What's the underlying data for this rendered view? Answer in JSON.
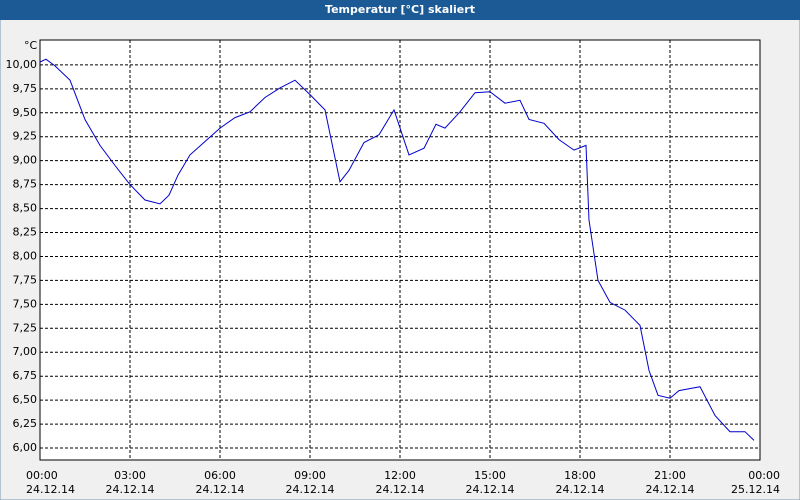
{
  "chart_data": {
    "type": "line",
    "title": "Temperatur [°C] skaliert",
    "y_label": "°C",
    "x": [
      0,
      0.2,
      0.5,
      1,
      1.5,
      2,
      2.5,
      3,
      3.5,
      4,
      4.3,
      4.6,
      5,
      5.5,
      6,
      6.5,
      7,
      7.5,
      8,
      8.5,
      9,
      9.5,
      10,
      10.3,
      10.8,
      11.3,
      11.8,
      12.3,
      12.8,
      13.2,
      13.5,
      14,
      14.5,
      15,
      15.5,
      16,
      16.3,
      16.8,
      17.3,
      17.8,
      18.2,
      18.3,
      18.6,
      19,
      19.5,
      20,
      20.3,
      20.6,
      21,
      21.3,
      22,
      22.5,
      23,
      23.5,
      23.8
    ],
    "series": [
      {
        "color": "#0000cc",
        "values": [
          10.03,
          10.06,
          9.99,
          9.84,
          9.43,
          9.16,
          8.95,
          8.75,
          8.59,
          8.55,
          8.64,
          8.85,
          9.06,
          9.2,
          9.34,
          9.45,
          9.51,
          9.66,
          9.76,
          9.84,
          9.69,
          9.53,
          8.78,
          8.9,
          9.19,
          9.27,
          9.53,
          9.06,
          9.13,
          9.38,
          9.34,
          9.51,
          9.71,
          9.72,
          9.6,
          9.63,
          9.43,
          9.39,
          9.22,
          9.11,
          9.16,
          8.38,
          7.75,
          7.52,
          7.44,
          7.28,
          6.81,
          6.55,
          6.52,
          6.6,
          6.64,
          6.34,
          6.17,
          6.17,
          6.08
        ]
      }
    ],
    "xlim": [
      0,
      24
    ],
    "xticks": [
      {
        "value": 0,
        "label": "00:00"
      },
      {
        "value": 3,
        "label": "03:00"
      },
      {
        "value": 6,
        "label": "06:00"
      },
      {
        "value": 9,
        "label": "09:00"
      },
      {
        "value": 12,
        "label": "12:00"
      },
      {
        "value": 15,
        "label": "15:00"
      },
      {
        "value": 18,
        "label": "18:00"
      },
      {
        "value": 21,
        "label": "21:00"
      },
      {
        "value": 24,
        "label": "00:00"
      }
    ],
    "xtick_dates": [
      "24.12.14",
      "24.12.14",
      "24.12.14",
      "24.12.14",
      "24.12.14",
      "24.12.14",
      "24.12.14",
      "24.12.14",
      "25.12.14"
    ],
    "ylim": [
      5.875,
      10.26
    ],
    "yticks": [
      {
        "value": 6,
        "label": "6,00"
      },
      {
        "value": 6.25,
        "label": "6,25"
      },
      {
        "value": 6.5,
        "label": "6,50"
      },
      {
        "value": 6.75,
        "label": "6,75"
      },
      {
        "value": 7,
        "label": "7,00"
      },
      {
        "value": 7.25,
        "label": "7,25"
      },
      {
        "value": 7.5,
        "label": "7,50"
      },
      {
        "value": 7.75,
        "label": "7,75"
      },
      {
        "value": 8,
        "label": "8,00"
      },
      {
        "value": 8.25,
        "label": "8,25"
      },
      {
        "value": 8.5,
        "label": "8,50"
      },
      {
        "value": 8.75,
        "label": "8,75"
      },
      {
        "value": 9,
        "label": "9,00"
      },
      {
        "value": 9.25,
        "label": "9,25"
      },
      {
        "value": 9.5,
        "label": "9,50"
      },
      {
        "value": 9.75,
        "label": "9,75"
      },
      {
        "value": 10,
        "label": "10,00"
      }
    ],
    "grid": true
  }
}
